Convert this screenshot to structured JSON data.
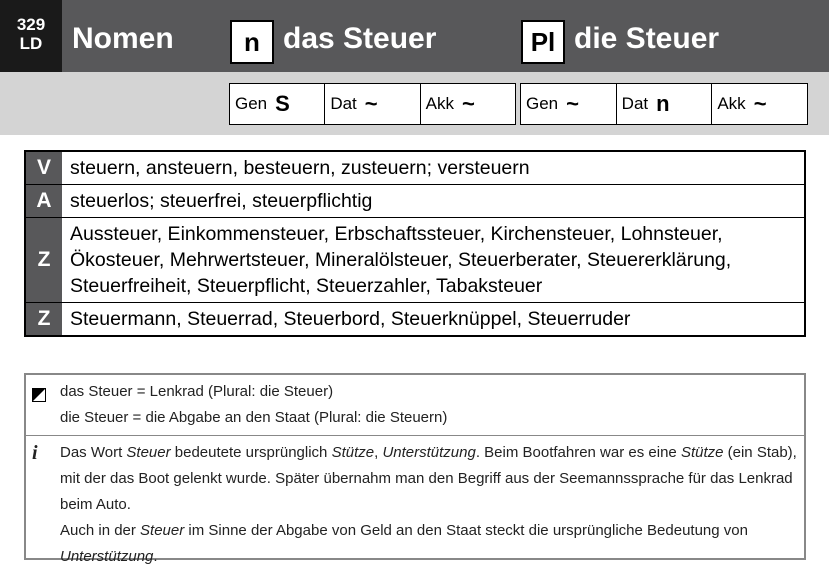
{
  "header": {
    "page_number": "329",
    "page_code": "LD",
    "word_class": "Nomen",
    "singular": {
      "marker": "n",
      "form": "das Steuer"
    },
    "plural": {
      "marker": "Pl",
      "form": "die Steuer"
    }
  },
  "cases": {
    "singular": [
      {
        "case": "Gen",
        "ending": "S"
      },
      {
        "case": "Dat",
        "ending": "~"
      },
      {
        "case": "Akk",
        "ending": "~"
      }
    ],
    "plural": [
      {
        "case": "Gen",
        "ending": "~"
      },
      {
        "case": "Dat",
        "ending": "n"
      },
      {
        "case": "Akk",
        "ending": "~"
      }
    ]
  },
  "table": {
    "rows": [
      [
        "V",
        "steuern, ansteuern, besteuern, zusteuern; versteuern"
      ],
      [
        "A",
        "steuerlos; steuerfrei, steuerpflichtig"
      ],
      [
        "Z",
        "Aussteuer, Einkommensteuer, Erbschaftssteuer, Kirchensteuer, Lohnsteuer, Ökosteuer, Mehrwertsteuer, Mineralölsteuer, Steuerberater, Steuererklärung, Steuerfreiheit, Steuerpflicht, Steuerzahler, Tabaksteuer"
      ],
      [
        "Z",
        "Steuermann, Steuerrad, Steuerbord, Steuerknüppel, Steuerruder"
      ]
    ]
  },
  "notes": [
    {
      "icon": "homonym",
      "paragraphs": [
        [
          {
            "text": "das Steuer = Lenkrad (Plural: die Steuer)",
            "style": "normal"
          }
        ],
        [
          {
            "text": "die Steuer = die Abgabe an den Staat (Plural: die Steuern)",
            "style": "normal"
          }
        ]
      ]
    },
    {
      "icon": "i",
      "paragraphs": [
        [
          {
            "text": "Das Wort ",
            "style": "normal"
          },
          {
            "text": "Steuer",
            "style": "italic"
          },
          {
            "text": " bedeutete ursprünglich ",
            "style": "normal"
          },
          {
            "text": "Stütze",
            "style": "italic"
          },
          {
            "text": ", ",
            "style": "normal"
          },
          {
            "text": "Unterstützung",
            "style": "italic"
          },
          {
            "text": ". Beim Bootfahren war es eine ",
            "style": "normal"
          },
          {
            "text": "Stütze",
            "style": "italic"
          },
          {
            "text": " (ein Stab), mit der das Boot gelenkt wurde. Später übernahm man den Begriff aus der Seemannssprache für das Lenkrad beim Auto.",
            "style": "normal"
          }
        ],
        [
          {
            "text": "Auch in der ",
            "style": "normal"
          },
          {
            "text": "Steuer",
            "style": "italic"
          },
          {
            "text": " im Sinne der Abgabe von Geld an den Staat steckt die ursprüngliche Bedeutung von ",
            "style": "normal"
          },
          {
            "text": "Unterstützung",
            "style": "italic"
          },
          {
            "text": ".",
            "style": "normal"
          }
        ]
      ]
    }
  ]
}
